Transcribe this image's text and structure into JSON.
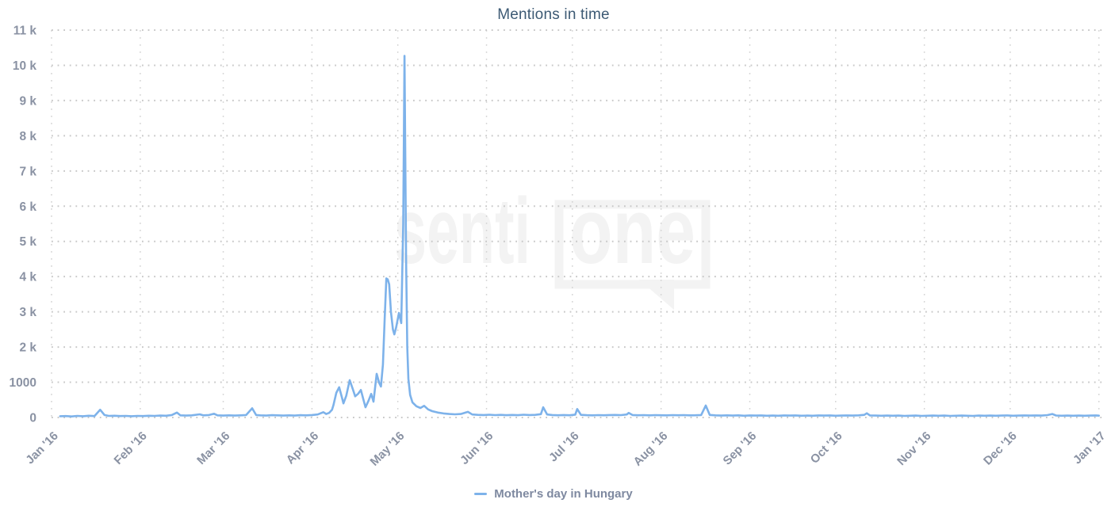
{
  "title": "Mentions in time",
  "legend": {
    "label": "Mother's day in Hungary",
    "marker_color": "#7db2ea"
  },
  "watermark": {
    "part1": "senti",
    "part2": "one"
  },
  "colors": {
    "series_line": "#7db2ea",
    "title_text": "#3d5a74",
    "axis_label_text": "#8a92a3",
    "legend_text": "#7e89a0",
    "grid_dots": "#c8c8c8",
    "month_grid_dots": "#d4d4d4",
    "watermark": "#f3f3f3",
    "background": "#ffffff"
  },
  "chart_data": {
    "type": "line",
    "title": "Mentions in time",
    "xlabel": "",
    "ylabel": "",
    "grid": "dotted horizontal and vertical month lines",
    "legend_position": "bottom center",
    "x_axis": {
      "unit": "days since Jan 1 2016",
      "range_days": [
        0,
        366
      ],
      "tick_days": [
        0,
        31,
        60,
        91,
        121,
        152,
        182,
        213,
        244,
        274,
        305,
        335,
        366
      ],
      "tick_labels": [
        "Jan '16",
        "Feb '16",
        "Mar '16",
        "Apr '16",
        "May '16",
        "Jun '16",
        "Jul '16",
        "Aug '16",
        "Sep '16",
        "Oct '16",
        "Nov '16",
        "Dec '16",
        "Jan '17"
      ]
    },
    "y_axis": {
      "max": 11000,
      "min": 0,
      "tick_values": [
        0,
        1000,
        2000,
        3000,
        4000,
        5000,
        6000,
        7000,
        8000,
        9000,
        10000,
        11000
      ],
      "tick_labels": [
        "0",
        "1000",
        "2 k",
        "3 k",
        "4 k",
        "5 k",
        "6 k",
        "7 k",
        "8 k",
        "9 k",
        "10 k",
        "11 k"
      ]
    },
    "series": [
      {
        "name": "Mother's day in Hungary",
        "color": "#7db2ea",
        "peak_value": 10270,
        "peak_day": 123.35,
        "points": [
          [
            3,
            35
          ],
          [
            5,
            40
          ],
          [
            7,
            30
          ],
          [
            9,
            45
          ],
          [
            11,
            35
          ],
          [
            13,
            50
          ],
          [
            15,
            40
          ],
          [
            17,
            220
          ],
          [
            18.5,
            70
          ],
          [
            20,
            45
          ],
          [
            22,
            50
          ],
          [
            24,
            40
          ],
          [
            26,
            45
          ],
          [
            28,
            35
          ],
          [
            30,
            45
          ],
          [
            32,
            40
          ],
          [
            34,
            50
          ],
          [
            36,
            45
          ],
          [
            38,
            55
          ],
          [
            40,
            50
          ],
          [
            42,
            70
          ],
          [
            43.8,
            140
          ],
          [
            45,
            60
          ],
          [
            47,
            55
          ],
          [
            49,
            60
          ],
          [
            51.8,
            90
          ],
          [
            53,
            60
          ],
          [
            55,
            70
          ],
          [
            56.8,
            105
          ],
          [
            58,
            60
          ],
          [
            60,
            55
          ],
          [
            62,
            60
          ],
          [
            64,
            55
          ],
          [
            66,
            60
          ],
          [
            68,
            70
          ],
          [
            70.1,
            260
          ],
          [
            71.5,
            70
          ],
          [
            73,
            60
          ],
          [
            75,
            55
          ],
          [
            77,
            65
          ],
          [
            79,
            60
          ],
          [
            81,
            55
          ],
          [
            83,
            60
          ],
          [
            85,
            55
          ],
          [
            87,
            65
          ],
          [
            89,
            60
          ],
          [
            91,
            70
          ],
          [
            93,
            85
          ],
          [
            95,
            150
          ],
          [
            96,
            100
          ],
          [
            97,
            130
          ],
          [
            98,
            220
          ],
          [
            98.5,
            350
          ],
          [
            99.5,
            700
          ],
          [
            100.5,
            860
          ],
          [
            101.5,
            560
          ],
          [
            102,
            400
          ],
          [
            103,
            620
          ],
          [
            104.2,
            1060
          ],
          [
            105.3,
            800
          ],
          [
            106.1,
            600
          ],
          [
            107.2,
            680
          ],
          [
            108.1,
            780
          ],
          [
            109,
            500
          ],
          [
            109.7,
            290
          ],
          [
            110.8,
            480
          ],
          [
            111.7,
            670
          ],
          [
            112.5,
            450
          ],
          [
            113.6,
            1240
          ],
          [
            114.5,
            980
          ],
          [
            115.1,
            880
          ],
          [
            115.8,
            1500
          ],
          [
            116.4,
            2800
          ],
          [
            117,
            3950
          ],
          [
            117.5,
            3920
          ],
          [
            118,
            3780
          ],
          [
            118.6,
            3000
          ],
          [
            119.3,
            2500
          ],
          [
            119.8,
            2360
          ],
          [
            120.4,
            2550
          ],
          [
            121.4,
            2970
          ],
          [
            122.2,
            2680
          ],
          [
            122.9,
            5500
          ],
          [
            123.35,
            10270
          ],
          [
            123.9,
            4500
          ],
          [
            124.3,
            2000
          ],
          [
            124.7,
            1100
          ],
          [
            125.3,
            640
          ],
          [
            126.1,
            430
          ],
          [
            127.5,
            320
          ],
          [
            128.9,
            270
          ],
          [
            130.2,
            330
          ],
          [
            131.6,
            230
          ],
          [
            133,
            180
          ],
          [
            135,
            140
          ],
          [
            137,
            115
          ],
          [
            139,
            100
          ],
          [
            141,
            90
          ],
          [
            143,
            100
          ],
          [
            145.5,
            160
          ],
          [
            147,
            85
          ],
          [
            149,
            75
          ],
          [
            151,
            70
          ],
          [
            153,
            78
          ],
          [
            155,
            68
          ],
          [
            157,
            75
          ],
          [
            159,
            65
          ],
          [
            161,
            72
          ],
          [
            163,
            66
          ],
          [
            165,
            78
          ],
          [
            167,
            70
          ],
          [
            169,
            74
          ],
          [
            171,
            95
          ],
          [
            171.8,
            290
          ],
          [
            173.2,
            85
          ],
          [
            175,
            70
          ],
          [
            177,
            64
          ],
          [
            179,
            70
          ],
          [
            181,
            62
          ],
          [
            183,
            80
          ],
          [
            183.7,
            240
          ],
          [
            185,
            75
          ],
          [
            187,
            65
          ],
          [
            189,
            60
          ],
          [
            191,
            68
          ],
          [
            193,
            62
          ],
          [
            195,
            70
          ],
          [
            197,
            72
          ],
          [
            199,
            68
          ],
          [
            201,
            85
          ],
          [
            201.7,
            130
          ],
          [
            203,
            70
          ],
          [
            205,
            64
          ],
          [
            207,
            68
          ],
          [
            209,
            60
          ],
          [
            211,
            68
          ],
          [
            213,
            63
          ],
          [
            215,
            60
          ],
          [
            217,
            68
          ],
          [
            219,
            64
          ],
          [
            221,
            68
          ],
          [
            223,
            60
          ],
          [
            225,
            64
          ],
          [
            227,
            70
          ],
          [
            228.6,
            340
          ],
          [
            230,
            72
          ],
          [
            232,
            60
          ],
          [
            234,
            55
          ],
          [
            236,
            60
          ],
          [
            238,
            54
          ],
          [
            240,
            60
          ],
          [
            242,
            50
          ],
          [
            244,
            58
          ],
          [
            246,
            54
          ],
          [
            248,
            58
          ],
          [
            250,
            50
          ],
          [
            252,
            55
          ],
          [
            254,
            50
          ],
          [
            256,
            58
          ],
          [
            258,
            54
          ],
          [
            260,
            58
          ],
          [
            262,
            50
          ],
          [
            264,
            55
          ],
          [
            266,
            50
          ],
          [
            268,
            58
          ],
          [
            270,
            54
          ],
          [
            272,
            58
          ],
          [
            274,
            50
          ],
          [
            276,
            55
          ],
          [
            278,
            58
          ],
          [
            280,
            54
          ],
          [
            282,
            60
          ],
          [
            284,
            75
          ],
          [
            284.9,
            120
          ],
          [
            286,
            58
          ],
          [
            288,
            54
          ],
          [
            290,
            50
          ],
          [
            292,
            54
          ],
          [
            294,
            50
          ],
          [
            296,
            54
          ],
          [
            298,
            46
          ],
          [
            300,
            50
          ],
          [
            302,
            54
          ],
          [
            304,
            46
          ],
          [
            306,
            50
          ],
          [
            308,
            54
          ],
          [
            310,
            50
          ],
          [
            312,
            54
          ],
          [
            314,
            46
          ],
          [
            316,
            50
          ],
          [
            318,
            54
          ],
          [
            320,
            50
          ],
          [
            322,
            46
          ],
          [
            324,
            54
          ],
          [
            326,
            50
          ],
          [
            328,
            54
          ],
          [
            330,
            50
          ],
          [
            332,
            54
          ],
          [
            334,
            58
          ],
          [
            336,
            50
          ],
          [
            338,
            54
          ],
          [
            340,
            58
          ],
          [
            342,
            54
          ],
          [
            344,
            58
          ],
          [
            346,
            54
          ],
          [
            348,
            68
          ],
          [
            349.7,
            100
          ],
          [
            351,
            56
          ],
          [
            353,
            50
          ],
          [
            355,
            54
          ],
          [
            357,
            50
          ],
          [
            359,
            54
          ],
          [
            361,
            50
          ],
          [
            363,
            54
          ],
          [
            365,
            58
          ],
          [
            366,
            52
          ]
        ]
      }
    ]
  }
}
